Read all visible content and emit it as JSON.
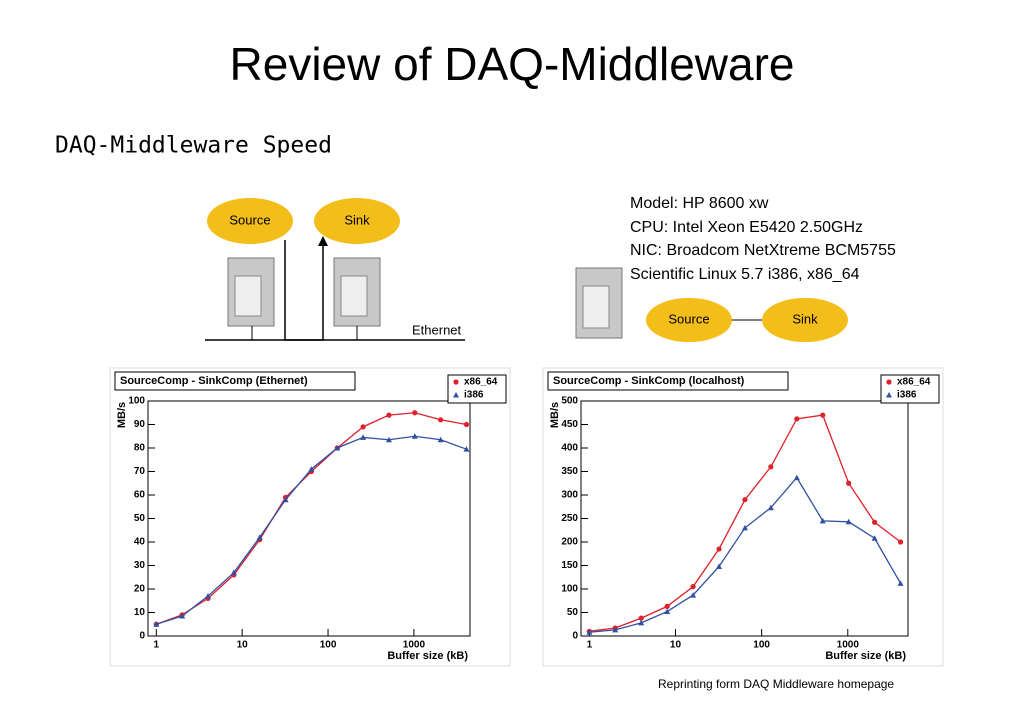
{
  "title": "Review of DAQ-Middleware",
  "subtitle": "DAQ-Middleware Speed",
  "diagram": {
    "nodes": [
      "Source",
      "Sink"
    ],
    "network_label": "Ethernet"
  },
  "specs": [
    "Model: HP 8600 xw",
    "CPU: Intel Xeon E5420 2.50GHz",
    "NIC: Broadcom NetXtreme BCM5755",
    "Scientific Linux 5.7 i386, x86_64"
  ],
  "local_diagram": {
    "nodes": [
      "Source",
      "Sink"
    ]
  },
  "footnote": "Reprinting form DAQ Middleware homepage",
  "chart_data": [
    {
      "type": "line",
      "title": "SourceComp - SinkComp (Ethernet)",
      "xlabel": "Buffer size (kB)",
      "ylabel": "MB/s",
      "xscale": "log",
      "legend": "upper right",
      "grid": false,
      "x": [
        1,
        2,
        4,
        8,
        16,
        32,
        64,
        128,
        256,
        512,
        1024,
        2048,
        4096
      ],
      "series": [
        {
          "name": "x86_64",
          "color": "#e0202a",
          "marker": "circle",
          "values": [
            5,
            9,
            16,
            26,
            41,
            59,
            70,
            80,
            89,
            94,
            95,
            92,
            90
          ]
        },
        {
          "name": "i386",
          "color": "#3050a0",
          "marker": "triangle",
          "values": [
            5,
            8.5,
            17,
            27,
            42,
            58,
            71,
            80,
            84.5,
            83.5,
            85,
            83.5,
            79.5
          ]
        }
      ],
      "xlim": [
        0.8,
        4500
      ],
      "ylim": [
        0,
        100
      ],
      "xticks": [
        1,
        10,
        100,
        1000
      ],
      "yticks": [
        0,
        10,
        20,
        30,
        40,
        50,
        60,
        70,
        80,
        90,
        100
      ]
    },
    {
      "type": "line",
      "title": "SourceComp - SinkComp (localhost)",
      "xlabel": "Buffer size (kB)",
      "ylabel": "MB/s",
      "xscale": "log",
      "legend": "upper right",
      "grid": false,
      "x": [
        1,
        2,
        4,
        8,
        16,
        32,
        64,
        128,
        256,
        512,
        1024,
        2048,
        4096
      ],
      "series": [
        {
          "name": "x86_64",
          "color": "#e0202a",
          "marker": "circle",
          "values": [
            10,
            17,
            38,
            63,
            105,
            185,
            290,
            360,
            462,
            470,
            325,
            242,
            200
          ]
        },
        {
          "name": "i386",
          "color": "#3050a0",
          "marker": "triangle",
          "values": [
            8,
            13,
            28,
            52,
            87,
            148,
            230,
            273,
            337,
            245,
            243,
            208,
            112
          ]
        }
      ],
      "xlim": [
        0.8,
        5000
      ],
      "ylim": [
        0,
        500
      ],
      "xticks": [
        1,
        10,
        100,
        1000
      ],
      "yticks": [
        0,
        50,
        100,
        150,
        200,
        250,
        300,
        350,
        400,
        450,
        500
      ]
    }
  ]
}
